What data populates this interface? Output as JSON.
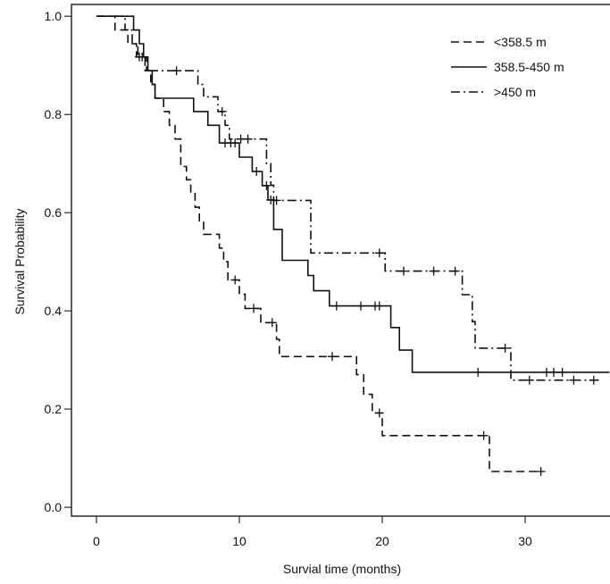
{
  "chart_data": {
    "type": "line",
    "xlabel": "Survial time (months)",
    "ylabel": "Survival Probability",
    "xlim": [
      -1.75,
      35.94
    ],
    "ylim": [
      -0.018,
      1.024
    ],
    "xticks": [
      0,
      10,
      20,
      30
    ],
    "xtick_labels": [
      "0",
      "10",
      "20",
      "30"
    ],
    "yticks": [
      0,
      0.2,
      0.4,
      0.6,
      0.8,
      1.0
    ],
    "ytick_labels": [
      "0.0",
      "0.2",
      "0.4",
      "0.6",
      "0.8",
      "1.0"
    ],
    "grid": false,
    "legend": "top-right",
    "series": [
      {
        "name": "<358.5 m",
        "line_style": "dashed",
        "steps": [
          [
            0,
            1.0
          ],
          [
            1.3,
            0.972
          ],
          [
            2.2,
            0.944
          ],
          [
            2.8,
            0.917
          ],
          [
            3.5,
            0.889
          ],
          [
            3.8,
            0.861
          ],
          [
            4.1,
            0.833
          ],
          [
            4.7,
            0.806
          ],
          [
            5.1,
            0.778
          ],
          [
            5.5,
            0.75
          ],
          [
            5.9,
            0.694
          ],
          [
            6.3,
            0.667
          ],
          [
            6.6,
            0.639
          ],
          [
            6.9,
            0.611
          ],
          [
            7.2,
            0.583
          ],
          [
            7.5,
            0.556
          ],
          [
            8.6,
            0.528
          ],
          [
            8.9,
            0.5
          ],
          [
            9.2,
            0.463
          ],
          [
            10.0,
            0.434
          ],
          [
            10.4,
            0.405
          ],
          [
            11.5,
            0.376
          ],
          [
            12.6,
            0.342
          ],
          [
            12.8,
            0.307
          ],
          [
            18.2,
            0.27
          ],
          [
            18.7,
            0.23
          ],
          [
            19.3,
            0.192
          ],
          [
            20.0,
            0.146
          ],
          [
            27.5,
            0.073
          ]
        ],
        "censored": [
          [
            3.0,
            0.917
          ],
          [
            9.7,
            0.463
          ],
          [
            11.0,
            0.405
          ],
          [
            12.3,
            0.376
          ],
          [
            16.5,
            0.307
          ],
          [
            19.8,
            0.192
          ],
          [
            27.1,
            0.146
          ],
          [
            31.1,
            0.073
          ]
        ],
        "last_time": 31.2
      },
      {
        "name": "358.5-450 m",
        "line_style": "solid",
        "steps": [
          [
            0,
            1.0
          ],
          [
            2.6,
            0.972
          ],
          [
            3.0,
            0.944
          ],
          [
            3.3,
            0.917
          ],
          [
            3.6,
            0.889
          ],
          [
            3.9,
            0.861
          ],
          [
            4.1,
            0.833
          ],
          [
            6.8,
            0.806
          ],
          [
            7.8,
            0.778
          ],
          [
            8.6,
            0.742
          ],
          [
            10.0,
            0.713
          ],
          [
            10.9,
            0.684
          ],
          [
            11.6,
            0.655
          ],
          [
            12.0,
            0.626
          ],
          [
            12.4,
            0.566
          ],
          [
            13.0,
            0.503
          ],
          [
            14.8,
            0.472
          ],
          [
            15.2,
            0.441
          ],
          [
            16.3,
            0.41
          ],
          [
            20.6,
            0.366
          ],
          [
            21.2,
            0.32
          ],
          [
            22.1,
            0.275
          ]
        ],
        "censored": [
          [
            9.0,
            0.742
          ],
          [
            9.4,
            0.742
          ],
          [
            9.7,
            0.742
          ],
          [
            11.2,
            0.684
          ],
          [
            11.9,
            0.655
          ],
          [
            12.2,
            0.626
          ],
          [
            16.8,
            0.41
          ],
          [
            18.5,
            0.41
          ],
          [
            19.5,
            0.41
          ],
          [
            19.8,
            0.41
          ],
          [
            26.7,
            0.275
          ],
          [
            31.5,
            0.275
          ],
          [
            32.0,
            0.275
          ],
          [
            32.6,
            0.275
          ]
        ],
        "last_time": 35.9
      },
      {
        "name": ">450 m",
        "line_style": "dash-dot",
        "steps": [
          [
            0,
            1.0
          ],
          [
            2.0,
            0.972
          ],
          [
            2.5,
            0.944
          ],
          [
            2.9,
            0.917
          ],
          [
            3.4,
            0.889
          ],
          [
            7.1,
            0.861
          ],
          [
            7.5,
            0.836
          ],
          [
            8.5,
            0.806
          ],
          [
            9.0,
            0.778
          ],
          [
            9.3,
            0.75
          ],
          [
            11.9,
            0.7
          ],
          [
            12.2,
            0.656
          ],
          [
            12.4,
            0.625
          ],
          [
            15.0,
            0.518
          ],
          [
            20.2,
            0.481
          ],
          [
            25.6,
            0.433
          ],
          [
            26.3,
            0.378
          ],
          [
            26.5,
            0.324
          ],
          [
            29.0,
            0.259
          ]
        ],
        "censored": [
          [
            3.2,
            0.917
          ],
          [
            5.6,
            0.889
          ],
          [
            8.8,
            0.806
          ],
          [
            10.1,
            0.75
          ],
          [
            10.6,
            0.75
          ],
          [
            12.6,
            0.625
          ],
          [
            19.8,
            0.518
          ],
          [
            21.5,
            0.481
          ],
          [
            23.6,
            0.481
          ],
          [
            25.1,
            0.481
          ],
          [
            28.6,
            0.324
          ],
          [
            30.3,
            0.259
          ],
          [
            33.4,
            0.259
          ],
          [
            34.8,
            0.259
          ]
        ],
        "last_time": 35.2
      }
    ]
  }
}
